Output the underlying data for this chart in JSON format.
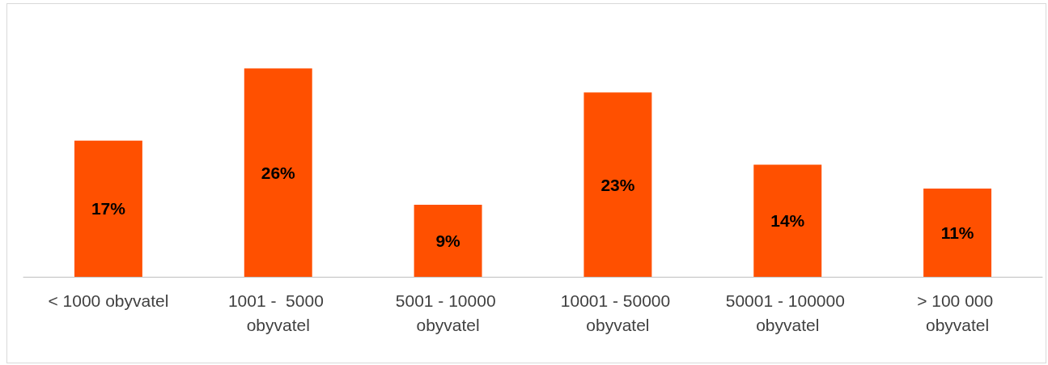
{
  "chart_data": {
    "type": "bar",
    "categories": [
      "< 1000 obyvatel",
      "1001 -  5000 obyvatel",
      "5001 - 10000 obyvatel",
      "10001 - 50000 obyvatel",
      "50001 - 100000 obyvatel",
      "> 100 000 obyvatel"
    ],
    "values": [
      17,
      26,
      9,
      23,
      14,
      11
    ],
    "color": "#ff5000",
    "value_labels": [
      "17%",
      "26%",
      "9%",
      "23%",
      "14%",
      "11%"
    ]
  }
}
